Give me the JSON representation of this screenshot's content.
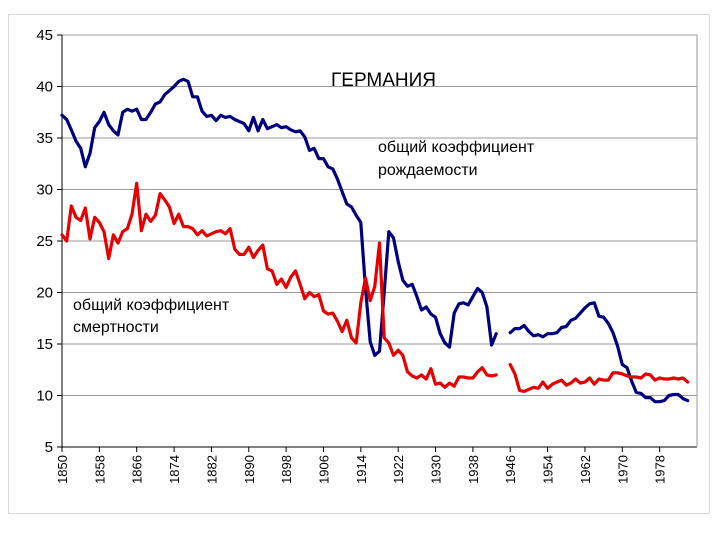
{
  "chart_data": {
    "type": "line",
    "title": "ГЕРМАНИЯ",
    "xlabel": "",
    "ylabel": "",
    "xlim": [
      1850,
      1986
    ],
    "ylim": [
      5,
      45
    ],
    "y_ticks": [
      5,
      10,
      15,
      20,
      25,
      30,
      35,
      40,
      45
    ],
    "x_ticks": [
      1850,
      1858,
      1866,
      1874,
      1882,
      1890,
      1898,
      1906,
      1914,
      1922,
      1930,
      1938,
      1946,
      1954,
      1962,
      1970,
      1978
    ],
    "grid": true,
    "legend": "none",
    "annotations": {
      "birth_line1": "общий коэффициент",
      "birth_line2": "рождаемости",
      "death_line1": "общий коэффициент",
      "death_line2": "смертности"
    },
    "series": [
      {
        "name": "общий коэффициент рождаемости",
        "color": "#00007f",
        "segments": [
          [
            [
              1850,
              37.2
            ],
            [
              1851,
              36.8
            ],
            [
              1852,
              35.8
            ],
            [
              1853,
              34.7
            ],
            [
              1854,
              34.0
            ],
            [
              1855,
              32.2
            ],
            [
              1856,
              33.5
            ],
            [
              1857,
              36.0
            ],
            [
              1858,
              36.6
            ],
            [
              1859,
              37.5
            ],
            [
              1860,
              36.3
            ],
            [
              1861,
              35.7
            ],
            [
              1862,
              35.3
            ],
            [
              1863,
              37.5
            ],
            [
              1864,
              37.8
            ],
            [
              1865,
              37.6
            ],
            [
              1866,
              37.8
            ],
            [
              1867,
              36.8
            ],
            [
              1868,
              36.8
            ],
            [
              1869,
              37.5
            ],
            [
              1870,
              38.3
            ],
            [
              1871,
              38.5
            ],
            [
              1872,
              39.2
            ],
            [
              1873,
              39.6
            ],
            [
              1874,
              40.0
            ],
            [
              1875,
              40.5
            ],
            [
              1876,
              40.7
            ],
            [
              1877,
              40.5
            ],
            [
              1878,
              39.0
            ],
            [
              1879,
              39.0
            ],
            [
              1880,
              37.6
            ],
            [
              1881,
              37.1
            ],
            [
              1882,
              37.2
            ],
            [
              1883,
              36.7
            ],
            [
              1884,
              37.2
            ],
            [
              1885,
              37.0
            ],
            [
              1886,
              37.1
            ],
            [
              1887,
              36.8
            ],
            [
              1888,
              36.6
            ],
            [
              1889,
              36.4
            ],
            [
              1890,
              35.7
            ],
            [
              1891,
              37.0
            ],
            [
              1892,
              35.7
            ],
            [
              1893,
              36.8
            ],
            [
              1894,
              35.9
            ],
            [
              1895,
              36.1
            ],
            [
              1896,
              36.3
            ],
            [
              1897,
              36.0
            ],
            [
              1898,
              36.1
            ],
            [
              1899,
              35.8
            ],
            [
              1900,
              35.6
            ],
            [
              1901,
              35.7
            ],
            [
              1902,
              35.1
            ],
            [
              1903,
              33.8
            ],
            [
              1904,
              34.0
            ],
            [
              1905,
              33.0
            ],
            [
              1906,
              33.0
            ],
            [
              1907,
              32.2
            ],
            [
              1908,
              32.0
            ],
            [
              1909,
              31.0
            ],
            [
              1910,
              29.8
            ],
            [
              1911,
              28.6
            ],
            [
              1912,
              28.3
            ],
            [
              1913,
              27.5
            ],
            [
              1914,
              26.8
            ],
            [
              1915,
              20.4
            ],
            [
              1916,
              15.2
            ],
            [
              1917,
              13.9
            ],
            [
              1918,
              14.3
            ],
            [
              1919,
              20.0
            ],
            [
              1920,
              25.9
            ],
            [
              1921,
              25.3
            ],
            [
              1922,
              23.0
            ],
            [
              1923,
              21.2
            ],
            [
              1924,
              20.6
            ],
            [
              1925,
              20.8
            ],
            [
              1926,
              19.6
            ],
            [
              1927,
              18.3
            ],
            [
              1928,
              18.6
            ],
            [
              1929,
              17.9
            ],
            [
              1930,
              17.6
            ],
            [
              1931,
              16.0
            ],
            [
              1932,
              15.1
            ],
            [
              1933,
              14.7
            ],
            [
              1934,
              18.0
            ],
            [
              1935,
              18.9
            ],
            [
              1936,
              19.0
            ],
            [
              1937,
              18.8
            ],
            [
              1938,
              19.6
            ],
            [
              1939,
              20.4
            ],
            [
              1940,
              20.0
            ],
            [
              1941,
              18.6
            ],
            [
              1942,
              14.9
            ],
            [
              1943,
              16.0
            ]
          ],
          [
            [
              1946,
              16.1
            ],
            [
              1947,
              16.5
            ],
            [
              1948,
              16.5
            ],
            [
              1949,
              16.8
            ],
            [
              1950,
              16.2
            ],
            [
              1951,
              15.8
            ],
            [
              1952,
              15.9
            ],
            [
              1953,
              15.7
            ],
            [
              1954,
              16.0
            ],
            [
              1955,
              16.0
            ],
            [
              1956,
              16.1
            ],
            [
              1957,
              16.6
            ],
            [
              1958,
              16.7
            ],
            [
              1959,
              17.3
            ],
            [
              1960,
              17.5
            ],
            [
              1961,
              18.0
            ],
            [
              1962,
              18.5
            ],
            [
              1963,
              18.9
            ],
            [
              1964,
              19.0
            ],
            [
              1965,
              17.7
            ],
            [
              1966,
              17.6
            ],
            [
              1967,
              17.0
            ],
            [
              1968,
              16.1
            ],
            [
              1969,
              14.8
            ],
            [
              1970,
              13.0
            ],
            [
              1971,
              12.7
            ],
            [
              1972,
              11.4
            ],
            [
              1973,
              10.3
            ],
            [
              1974,
              10.2
            ],
            [
              1975,
              9.8
            ],
            [
              1976,
              9.8
            ],
            [
              1977,
              9.4
            ],
            [
              1978,
              9.4
            ],
            [
              1979,
              9.5
            ],
            [
              1980,
              10.0
            ],
            [
              1981,
              10.1
            ],
            [
              1982,
              10.1
            ],
            [
              1983,
              9.7
            ],
            [
              1984,
              9.5
            ]
          ]
        ]
      },
      {
        "name": "общий коэффициент смертности",
        "color": "#e60000",
        "segments": [
          [
            [
              1850,
              25.6
            ],
            [
              1851,
              25.0
            ],
            [
              1852,
              28.4
            ],
            [
              1853,
              27.3
            ],
            [
              1854,
              27.0
            ],
            [
              1855,
              28.2
            ],
            [
              1856,
              25.2
            ],
            [
              1857,
              27.3
            ],
            [
              1858,
              26.8
            ],
            [
              1859,
              25.9
            ],
            [
              1860,
              23.3
            ],
            [
              1861,
              25.6
            ],
            [
              1862,
              24.8
            ],
            [
              1863,
              25.9
            ],
            [
              1864,
              26.2
            ],
            [
              1865,
              27.6
            ],
            [
              1866,
              30.6
            ],
            [
              1867,
              26.0
            ],
            [
              1868,
              27.6
            ],
            [
              1869,
              26.9
            ],
            [
              1870,
              27.5
            ],
            [
              1871,
              29.6
            ],
            [
              1872,
              29.0
            ],
            [
              1873,
              28.3
            ],
            [
              1874,
              26.7
            ],
            [
              1875,
              27.6
            ],
            [
              1876,
              26.4
            ],
            [
              1877,
              26.4
            ],
            [
              1878,
              26.2
            ],
            [
              1879,
              25.6
            ],
            [
              1880,
              26.0
            ],
            [
              1881,
              25.5
            ],
            [
              1882,
              25.7
            ],
            [
              1883,
              25.9
            ],
            [
              1884,
              26.0
            ],
            [
              1885,
              25.7
            ],
            [
              1886,
              26.2
            ],
            [
              1887,
              24.2
            ],
            [
              1888,
              23.7
            ],
            [
              1889,
              23.7
            ],
            [
              1890,
              24.4
            ],
            [
              1891,
              23.4
            ],
            [
              1892,
              24.1
            ],
            [
              1893,
              24.6
            ],
            [
              1894,
              22.3
            ],
            [
              1895,
              22.1
            ],
            [
              1896,
              20.8
            ],
            [
              1897,
              21.3
            ],
            [
              1898,
              20.5
            ],
            [
              1899,
              21.5
            ],
            [
              1900,
              22.1
            ],
            [
              1901,
              20.8
            ],
            [
              1902,
              19.4
            ],
            [
              1903,
              20.0
            ],
            [
              1904,
              19.6
            ],
            [
              1905,
              19.8
            ],
            [
              1906,
              18.2
            ],
            [
              1907,
              17.9
            ],
            [
              1908,
              18.0
            ],
            [
              1909,
              17.2
            ],
            [
              1910,
              16.2
            ],
            [
              1911,
              17.3
            ],
            [
              1912,
              15.6
            ],
            [
              1913,
              15.1
            ],
            [
              1914,
              19.0
            ],
            [
              1915,
              21.4
            ],
            [
              1916,
              19.2
            ],
            [
              1917,
              20.6
            ],
            [
              1918,
              24.8
            ],
            [
              1919,
              15.6
            ],
            [
              1920,
              15.1
            ],
            [
              1921,
              13.9
            ],
            [
              1922,
              14.4
            ],
            [
              1923,
              13.9
            ],
            [
              1924,
              12.3
            ],
            [
              1925,
              11.9
            ],
            [
              1926,
              11.7
            ],
            [
              1927,
              12.0
            ],
            [
              1928,
              11.6
            ],
            [
              1929,
              12.6
            ],
            [
              1930,
              11.1
            ],
            [
              1931,
              11.2
            ],
            [
              1932,
              10.8
            ],
            [
              1933,
              11.2
            ],
            [
              1934,
              10.9
            ],
            [
              1935,
              11.8
            ],
            [
              1936,
              11.8
            ],
            [
              1937,
              11.7
            ],
            [
              1938,
              11.7
            ],
            [
              1939,
              12.3
            ],
            [
              1940,
              12.7
            ],
            [
              1941,
              12.0
            ],
            [
              1942,
              11.9
            ],
            [
              1943,
              12.0
            ]
          ],
          [
            [
              1946,
              13.0
            ],
            [
              1947,
              12.1
            ],
            [
              1948,
              10.5
            ],
            [
              1949,
              10.4
            ],
            [
              1950,
              10.6
            ],
            [
              1951,
              10.8
            ],
            [
              1952,
              10.7
            ],
            [
              1953,
              11.3
            ],
            [
              1954,
              10.7
            ],
            [
              1955,
              11.1
            ],
            [
              1956,
              11.3
            ],
            [
              1957,
              11.5
            ],
            [
              1958,
              11.0
            ],
            [
              1959,
              11.2
            ],
            [
              1960,
              11.6
            ],
            [
              1961,
              11.2
            ],
            [
              1962,
              11.3
            ],
            [
              1963,
              11.7
            ],
            [
              1964,
              11.1
            ],
            [
              1965,
              11.6
            ],
            [
              1966,
              11.5
            ],
            [
              1967,
              11.5
            ],
            [
              1968,
              12.2
            ],
            [
              1969,
              12.2
            ],
            [
              1970,
              12.1
            ],
            [
              1971,
              11.9
            ],
            [
              1972,
              11.8
            ],
            [
              1973,
              11.8
            ],
            [
              1974,
              11.7
            ],
            [
              1975,
              12.1
            ],
            [
              1976,
              12.0
            ],
            [
              1977,
              11.5
            ],
            [
              1978,
              11.7
            ],
            [
              1979,
              11.6
            ],
            [
              1980,
              11.6
            ],
            [
              1981,
              11.7
            ],
            [
              1982,
              11.6
            ],
            [
              1983,
              11.7
            ],
            [
              1984,
              11.3
            ]
          ]
        ]
      }
    ]
  }
}
